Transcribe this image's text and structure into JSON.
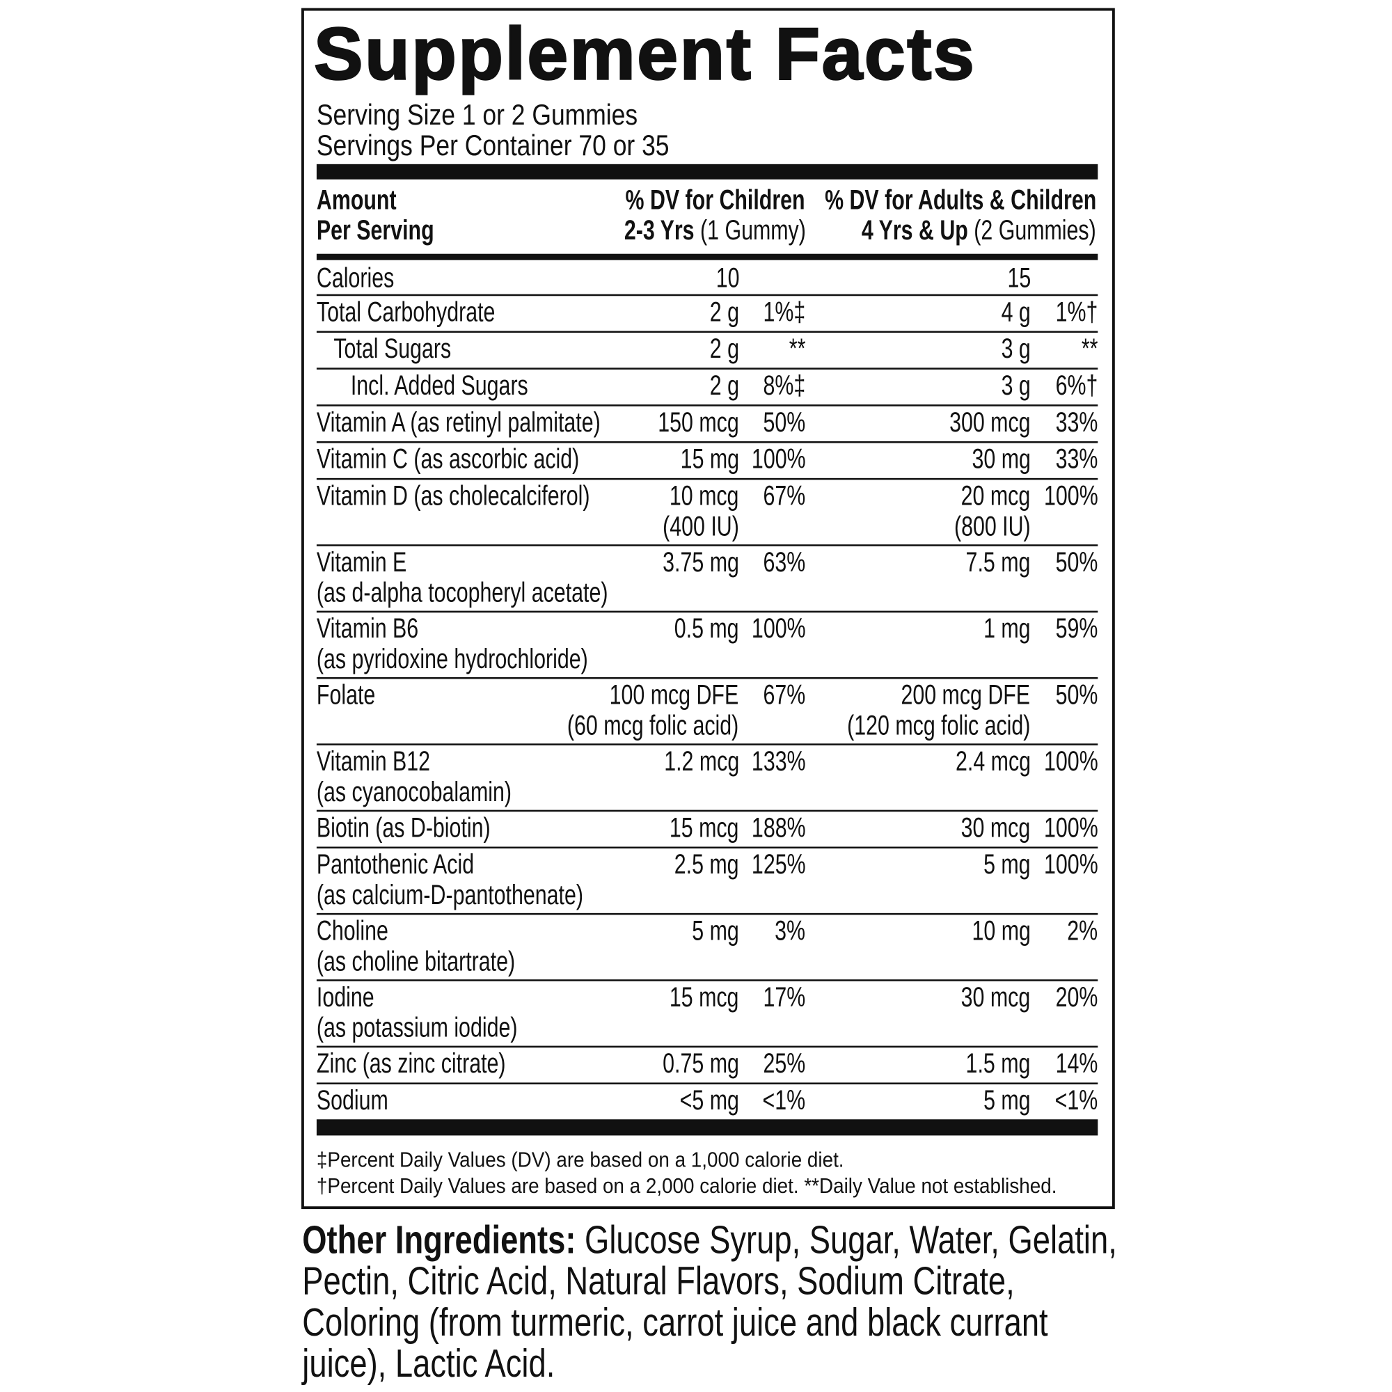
{
  "title": "Supplement Facts",
  "serving_size": "Serving Size 1 or 2 Gummies",
  "servings_per_container": "Servings Per Container 70 or 35",
  "header": {
    "amount_line1": "Amount",
    "amount_line2": "Per Serving",
    "children_line1": "% DV for Children",
    "children_age": "2-3 Yrs",
    "children_dose": "(1 Gummy)",
    "adults_line1": "% DV for Adults & Children",
    "adults_age": "4 Yrs & Up",
    "adults_dose": "(2 Gummies)"
  },
  "rows": [
    {
      "name": "Calories",
      "child_amount": "10",
      "adult_amount": "15"
    },
    {
      "name": "Total Carbohydrate",
      "child_amount": "2 g",
      "child_dv": "1%‡",
      "adult_amount": "4 g",
      "adult_dv": "1%†"
    },
    {
      "name": "Total Sugars",
      "child_amount": "2 g",
      "child_dv": "**",
      "adult_amount": "3 g",
      "adult_dv": "**"
    },
    {
      "name": "Incl. Added Sugars",
      "child_amount": "2 g",
      "child_dv": "8%‡",
      "adult_amount": "3 g",
      "adult_dv": "6%†"
    },
    {
      "name": "Vitamin A (as retinyl palmitate)",
      "child_amount": "150 mcg",
      "child_dv": "50%",
      "adult_amount": "300 mcg",
      "adult_dv": "33%"
    },
    {
      "name": "Vitamin C (as ascorbic acid)",
      "child_amount": "15 mg",
      "child_dv": "100%",
      "adult_amount": "30 mg",
      "adult_dv": "33%"
    },
    {
      "name": "Vitamin D (as cholecalciferol)",
      "child_amount": "10 mcg",
      "child_amount2": "(400 IU)",
      "child_dv": "67%",
      "adult_amount": "20 mcg",
      "adult_amount2": "(800 IU)",
      "adult_dv": "100%"
    },
    {
      "name": "Vitamin E",
      "sub": "(as d-alpha tocopheryl acetate)",
      "child_amount": "3.75 mg",
      "child_dv": "63%",
      "adult_amount": "7.5 mg",
      "adult_dv": "50%"
    },
    {
      "name": "Vitamin B6",
      "sub": "(as pyridoxine hydrochloride)",
      "child_amount": "0.5 mg",
      "child_dv": "100%",
      "adult_amount": "1 mg",
      "adult_dv": "59%"
    },
    {
      "name": "Folate",
      "child_amount": "100 mcg DFE",
      "child_amount2": "(60 mcg folic acid)",
      "child_dv": "67%",
      "adult_amount": "200 mcg DFE",
      "adult_amount2": "(120 mcg folic acid)",
      "adult_dv": "50%"
    },
    {
      "name": "Vitamin B12",
      "sub": "(as cyanocobalamin)",
      "child_amount": "1.2 mcg",
      "child_dv": "133%",
      "adult_amount": "2.4 mcg",
      "adult_dv": "100%"
    },
    {
      "name": "Biotin (as D-biotin)",
      "child_amount": "15 mcg",
      "child_dv": "188%",
      "adult_amount": "30 mcg",
      "adult_dv": "100%"
    },
    {
      "name": "Pantothenic Acid",
      "sub": "(as calcium-D-pantothenate)",
      "child_amount": "2.5 mg",
      "child_dv": "125%",
      "adult_amount": "5 mg",
      "adult_dv": "100%"
    },
    {
      "name": "Choline",
      "sub": "(as choline bitartrate)",
      "child_amount": "5 mg",
      "child_dv": "3%",
      "adult_amount": "10 mg",
      "adult_dv": "2%"
    },
    {
      "name": "Iodine",
      "sub": "(as potassium iodide)",
      "child_amount": "15 mcg",
      "child_dv": "17%",
      "adult_amount": "30 mcg",
      "adult_dv": "20%"
    },
    {
      "name": "Zinc (as zinc citrate)",
      "child_amount": "0.75 mg",
      "child_dv": "25%",
      "adult_amount": "1.5 mg",
      "adult_dv": "14%"
    },
    {
      "name": "Sodium",
      "child_amount": "<5 mg",
      "child_dv": "<1%",
      "adult_amount": "5 mg",
      "adult_dv": "<1%"
    }
  ],
  "footnotes": [
    "‡Percent Daily Values (DV) are based on a 1,000 calorie diet.",
    "†Percent Daily Values are based on a 2,000 calorie diet. **Daily Value not established."
  ],
  "other_ingredients": {
    "label": "Other Ingredients:",
    "text": "Glucose Syrup, Sugar, Water, Gelatin, Pectin, Citric Acid, Natural Flavors, Sodium Citrate, Coloring (from turmeric, carrot juice and black currant juice), Lactic Acid."
  }
}
